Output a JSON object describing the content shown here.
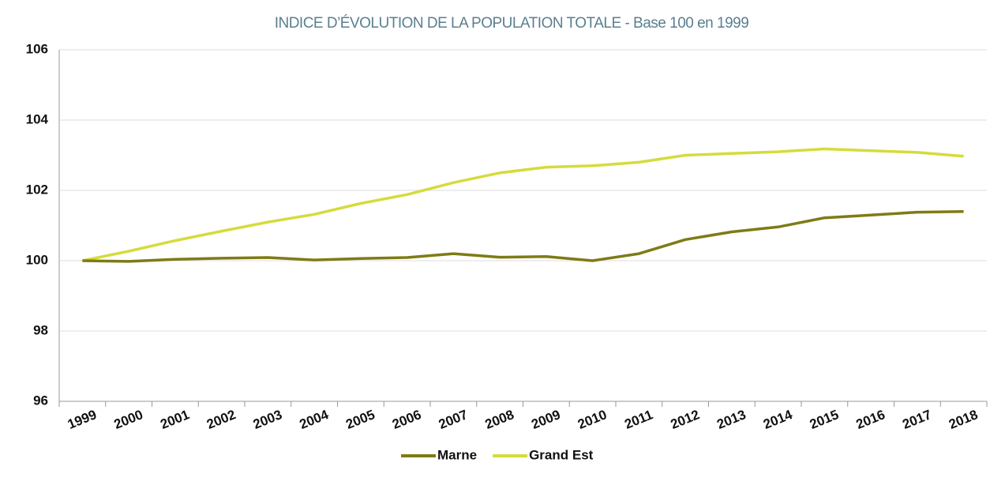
{
  "chart_data": {
    "type": "line",
    "title": "INDICE D’ÉVOLUTION DE LA POPULATION TOTALE - Base 100 en 1999",
    "categories": [
      "1999",
      "2000",
      "2001",
      "2002",
      "2003",
      "2004",
      "2005",
      "2006",
      "2007",
      "2008",
      "2009",
      "2010",
      "2011",
      "2012",
      "2013",
      "2014",
      "2015",
      "2016",
      "2017",
      "2018"
    ],
    "series": [
      {
        "name": "Marne",
        "color": "#7e7b16",
        "values": [
          100,
          99.98,
          100.04,
          100.07,
          100.09,
          100.02,
          100.06,
          100.09,
          100.2,
          100.1,
          100.12,
          100.0,
          100.2,
          100.6,
          100.82,
          100.96,
          101.22,
          101.3,
          101.38,
          101.4
        ]
      },
      {
        "name": "Grand Est",
        "color": "#d4dc3c",
        "values": [
          100,
          100.27,
          100.57,
          100.84,
          101.1,
          101.32,
          101.63,
          101.88,
          102.22,
          102.5,
          102.66,
          102.7,
          102.8,
          103.0,
          103.05,
          103.1,
          103.18,
          103.13,
          103.08,
          102.97
        ]
      }
    ],
    "ylim": [
      96,
      106
    ],
    "yticks": [
      96,
      98,
      100,
      102,
      104,
      106
    ],
    "grid": true,
    "legend": "bottom"
  }
}
